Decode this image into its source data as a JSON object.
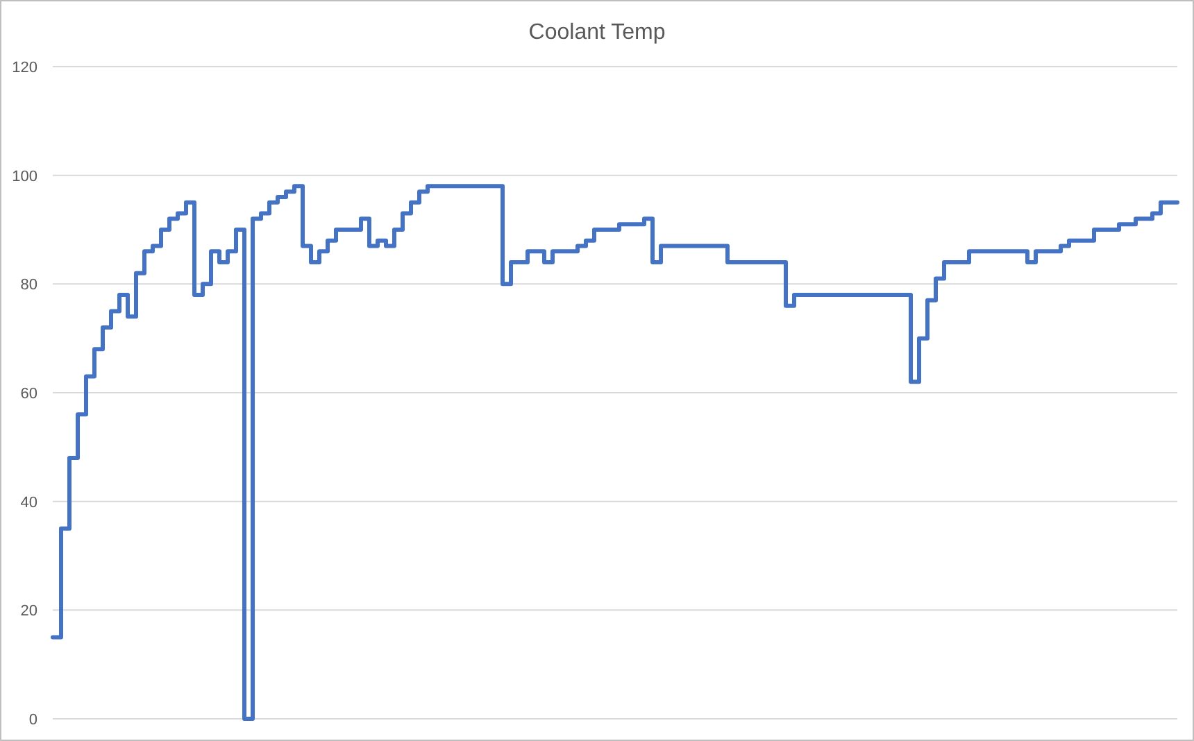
{
  "chart_data": {
    "type": "step",
    "title": "Coolant Temp",
    "categories": [
      null,
      null,
      null,
      null,
      null,
      null,
      null,
      null,
      null,
      null,
      null,
      null,
      null,
      null,
      null,
      null,
      null,
      null,
      null,
      null,
      null,
      null,
      null,
      null,
      null,
      null,
      null,
      null,
      null,
      null,
      null,
      null,
      null,
      null,
      null,
      null,
      null,
      null,
      null,
      null,
      null,
      null,
      null,
      null,
      null,
      null,
      null,
      null,
      null,
      null,
      null,
      null,
      null,
      null,
      null,
      null,
      null,
      null,
      null,
      null,
      null,
      null,
      null,
      null,
      null,
      null,
      null,
      null,
      null,
      null,
      null,
      null,
      null,
      null,
      null,
      null,
      null,
      null,
      null,
      null,
      null,
      null,
      null,
      null,
      null,
      null,
      null,
      null,
      null,
      null,
      null,
      null,
      null,
      null,
      null,
      null,
      null,
      null,
      null,
      null,
      null,
      null,
      null,
      null,
      null,
      null,
      null,
      null,
      null,
      null,
      null,
      null,
      null,
      null,
      null,
      null,
      null,
      null,
      null,
      null,
      null,
      null,
      null,
      null,
      null,
      null,
      null,
      null,
      null,
      null,
      null,
      null,
      null,
      null,
      null,
      null
    ],
    "series": [
      {
        "color": "#4472c4",
        "values": [
          15,
          35,
          48,
          56,
          63,
          68,
          72,
          75,
          78,
          74,
          82,
          86,
          87,
          90,
          92,
          93,
          95,
          78,
          80,
          86,
          84,
          86,
          90,
          0,
          92,
          93,
          95,
          96,
          97,
          98,
          87,
          84,
          86,
          88,
          90,
          90,
          90,
          92,
          87,
          88,
          87,
          90,
          93,
          95,
          97,
          98,
          98,
          98,
          98,
          98,
          98,
          98,
          98,
          98,
          80,
          84,
          84,
          86,
          86,
          84,
          86,
          86,
          86,
          87,
          88,
          90,
          90,
          90,
          91,
          91,
          91,
          92,
          84,
          87,
          87,
          87,
          87,
          87,
          87,
          87,
          87,
          84,
          84,
          84,
          84,
          84,
          84,
          84,
          76,
          78,
          78,
          78,
          78,
          78,
          78,
          78,
          78,
          78,
          78,
          78,
          78,
          78,
          78,
          62,
          70,
          77,
          81,
          84,
          84,
          84,
          86,
          86,
          86,
          86,
          86,
          86,
          86,
          84,
          86,
          86,
          86,
          87,
          88,
          88,
          88,
          90,
          90,
          90,
          91,
          91,
          92,
          92,
          93,
          95,
          95,
          95
        ]
      }
    ],
    "ylim": [
      0,
      120
    ],
    "yticks": [
      0,
      20,
      40,
      60,
      80,
      100,
      120
    ],
    "grid": "y",
    "line_style": "solid"
  }
}
